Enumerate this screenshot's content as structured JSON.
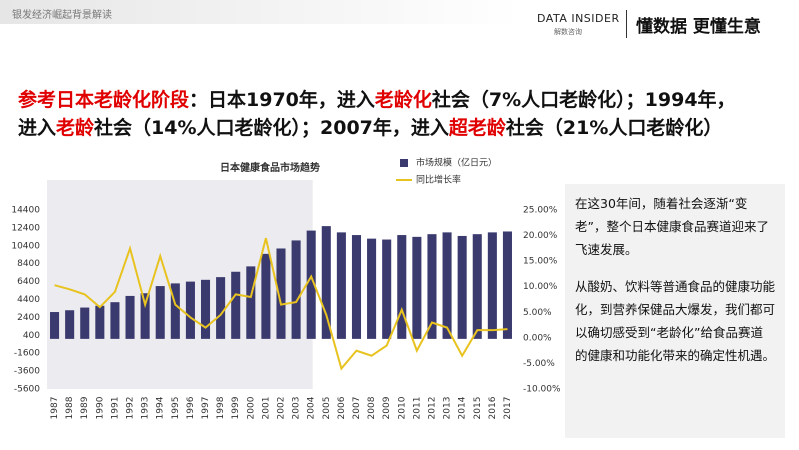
{
  "header": {
    "breadcrumb": "银发经济崛起背景解读",
    "logo": "DATA INSIDER",
    "logo_sub": "解数咨询",
    "slogan": "懂数据 更懂生意"
  },
  "heading": {
    "lines": [
      [
        {
          "text": "参考日本老龄化阶段",
          "color": "#e00000"
        },
        {
          "text": "：日本1970年，进入",
          "color": "#111111"
        },
        {
          "text": "老龄化",
          "color": "#e00000"
        },
        {
          "text": "社会（7%人口老龄化）；1994年，",
          "color": "#111111"
        }
      ],
      [
        {
          "text": "进入",
          "color": "#111111"
        },
        {
          "text": "老龄",
          "color": "#e00000"
        },
        {
          "text": "社会（14%人口老龄化）；2007年，进入",
          "color": "#111111"
        },
        {
          "text": "超老龄",
          "color": "#e00000"
        },
        {
          "text": "社会（21%人口老龄化）",
          "color": "#111111"
        }
      ]
    ]
  },
  "note": {
    "paragraphs": [
      "在这30年间，随着社会逐渐“变老”，整个日本健康食品赛道迎来了飞速发展。",
      "从酸奶、饮料等普通食品的健康功能化，到营养保健品大爆发，我们都可以确切感受到“老龄化”给食品赛道的健康和功能化带来的确定性机遇。"
    ]
  },
  "chart_data": {
    "type": "bar_line",
    "title": "日本健康食品市场趋势",
    "categories": [
      "1987",
      "1988",
      "1989",
      "1990",
      "1991",
      "1992",
      "1993",
      "1994",
      "1995",
      "1996",
      "1997",
      "1998",
      "1999",
      "2000",
      "2001",
      "2002",
      "2003",
      "2004",
      "2005",
      "2006",
      "2007",
      "2008",
      "2009",
      "2010",
      "2011",
      "2012",
      "2013",
      "2014",
      "2015",
      "2016",
      "2017"
    ],
    "series": [
      {
        "name": "市场规模（亿日元）",
        "type": "bar",
        "color": "#3b3a6e",
        "values": [
          3000,
          3200,
          3500,
          3700,
          4100,
          4800,
          5100,
          5900,
          6200,
          6400,
          6600,
          6900,
          7500,
          8100,
          9500,
          10100,
          11000,
          12100,
          12600,
          11900,
          11600,
          11200,
          11100,
          11600,
          11400,
          11700,
          11900,
          11500,
          11700,
          11900,
          12000
        ]
      },
      {
        "name": "同比增长率",
        "type": "line",
        "axis": "y2",
        "color": "#e8c320",
        "values": [
          10.3,
          9.5,
          8.5,
          6,
          9,
          17.5,
          6.5,
          16,
          6.5,
          4,
          2,
          4.5,
          8.5,
          8,
          19.5,
          6.5,
          7,
          12,
          4.5,
          -6,
          -2.5,
          -3.5,
          -1.5,
          5.5,
          -2.5,
          3,
          2,
          -3.5,
          1.5,
          1.5,
          1.7
        ]
      }
    ],
    "ylim": [
      -5600,
      14400
    ],
    "yticks": [
      -5600,
      -3600,
      -1600,
      400,
      2400,
      4400,
      6400,
      8400,
      10400,
      12400,
      14400
    ],
    "y2lim": [
      -10,
      25
    ],
    "y2ticks": [
      {
        "value": -10,
        "label": "-10.00%"
      },
      {
        "value": -5,
        "label": "-5.00%"
      },
      {
        "value": 0,
        "label": "0.00%"
      },
      {
        "value": 5,
        "label": "5.00%"
      },
      {
        "value": 10,
        "label": "10.00%"
      },
      {
        "value": 15,
        "label": "15.00%"
      },
      {
        "value": 20,
        "label": "20.00%"
      },
      {
        "value": 25,
        "label": "25.00%"
      }
    ],
    "grid": false
  }
}
